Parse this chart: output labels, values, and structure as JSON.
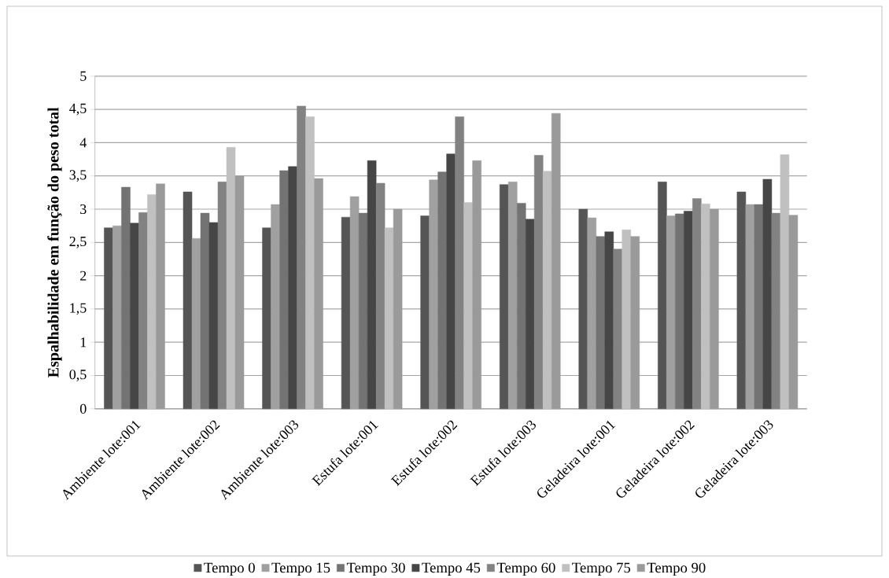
{
  "chart_data": {
    "type": "bar",
    "ylabel": "Espalhabilidade em função do peso total",
    "categories": [
      "Ambiente lote:001",
      "Ambiente lote:002",
      "Ambiente lote:003",
      "Estufa lote:001",
      "Estufa lote:002",
      "Estufa lote:003",
      "Geladeira lote:001",
      "Geladeira lote:002",
      "Geladeira lote:003"
    ],
    "series": [
      {
        "name": "Tempo 0",
        "color": "#555555",
        "values": [
          2.72,
          3.26,
          2.72,
          2.88,
          2.9,
          3.37,
          3.0,
          3.41,
          3.26
        ]
      },
      {
        "name": "Tempo 15",
        "color": "#a0a0a0",
        "values": [
          2.75,
          2.56,
          3.07,
          3.19,
          3.44,
          3.41,
          2.87,
          2.9,
          3.07
        ]
      },
      {
        "name": "Tempo 30",
        "color": "#737373",
        "values": [
          3.33,
          2.94,
          3.58,
          2.94,
          3.56,
          3.09,
          2.59,
          2.93,
          3.07
        ]
      },
      {
        "name": "Tempo 45",
        "color": "#464646",
        "values": [
          2.79,
          2.8,
          3.64,
          3.73,
          3.83,
          2.85,
          2.66,
          2.97,
          3.45
        ]
      },
      {
        "name": "Tempo 60",
        "color": "#828282",
        "values": [
          2.95,
          3.41,
          4.55,
          3.39,
          4.39,
          3.81,
          2.4,
          3.16,
          2.94
        ]
      },
      {
        "name": "Tempo 75",
        "color": "#c0c0c0",
        "values": [
          3.22,
          3.93,
          4.39,
          2.72,
          3.1,
          3.57,
          2.69,
          3.08,
          3.82
        ]
      },
      {
        "name": "Tempo 90",
        "color": "#9a9a9a",
        "values": [
          3.38,
          3.5,
          3.46,
          3.0,
          3.73,
          4.44,
          2.59,
          3.0,
          2.91
        ]
      }
    ],
    "ylim": [
      0,
      5
    ],
    "yticks": [
      0,
      {
        "value": 0.5,
        "label": "0,5"
      },
      1,
      {
        "value": 1.5,
        "label": "1,5"
      },
      2,
      {
        "value": 2.5,
        "label": "2,5"
      },
      3,
      {
        "value": 3.5,
        "label": "3,5"
      },
      4,
      {
        "value": 4.5,
        "label": "4,5"
      },
      5
    ],
    "grid": "y",
    "legend": "bottom"
  }
}
